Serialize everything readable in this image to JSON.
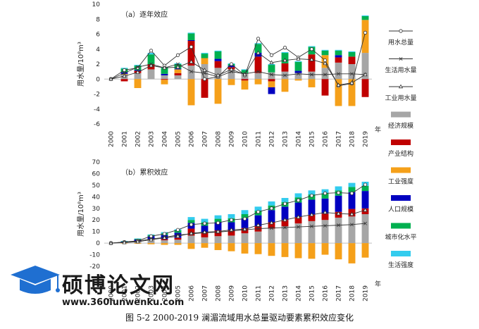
{
  "chart_data": [
    {
      "type": "bar",
      "panel_label": "（a）逐年效应",
      "ylabel": "用水量/10⁸m³",
      "ylim": [
        -6,
        10
      ],
      "yticks": [
        -6,
        -4,
        -2,
        0,
        2,
        4,
        6,
        8,
        10
      ],
      "categories": [
        "2000",
        "2001",
        "2002",
        "2003",
        "2004",
        "2005",
        "2006",
        "2007",
        "2008",
        "2009",
        "2010",
        "2011",
        "2012",
        "2013",
        "2014",
        "2015",
        "2016",
        "2017",
        "2018",
        "2019"
      ],
      "xaxis_unit": "年",
      "stacked": true,
      "series": [
        {
          "name": "经济规模",
          "color": "#a6a6a6",
          "values": [
            0,
            0.6,
            0.8,
            1.3,
            0.5,
            0.5,
            1.8,
            2.0,
            1.5,
            1.3,
            0.8,
            0.8,
            0.9,
            1.0,
            0.8,
            1.0,
            1.5,
            2.2,
            2.0,
            3.5
          ]
        },
        {
          "name": "产业结构",
          "color": "#c00000",
          "values": [
            0,
            -0.3,
            0.3,
            0.7,
            -0.1,
            0.3,
            3.3,
            -2.5,
            0.9,
            0.3,
            -0.2,
            2.2,
            -0.3,
            1.1,
            0.0,
            2.3,
            -2.2,
            0.7,
            1.0,
            -2.4
          ]
        },
        {
          "name": "工业强度",
          "color": "#f5a01a",
          "values": [
            0,
            0.1,
            -1.2,
            0.0,
            -0.6,
            0.5,
            -3.5,
            0.8,
            -3.3,
            -0.8,
            -1.2,
            -0.7,
            -0.8,
            -1.7,
            -0.2,
            -1.1,
            1.7,
            -3.6,
            -3.6,
            4.4
          ]
        },
        {
          "name": "人口规模",
          "color": "#0000c0",
          "values": [
            0,
            0.2,
            0.1,
            0.0,
            0.2,
            0.1,
            0.1,
            0.0,
            0.3,
            0.2,
            0.0,
            0.5,
            -0.9,
            0.0,
            0.3,
            0.0,
            0.0,
            0.3,
            0.0,
            0.0
          ]
        },
        {
          "name": "城市化水平",
          "color": "#00b050",
          "values": [
            0,
            0.5,
            0.6,
            1.3,
            0.8,
            0.6,
            0.9,
            0.6,
            1.0,
            0.2,
            0.4,
            1.2,
            1.0,
            1.4,
            1.2,
            1.0,
            0.6,
            0.6,
            0.6,
            0.5
          ]
        },
        {
          "name": "生活强度",
          "color": "#33ccee",
          "values": [
            0,
            0.1,
            0.1,
            0.2,
            0.1,
            0.1,
            0.1,
            0.1,
            0.1,
            0.1,
            0.1,
            0.1,
            0.1,
            0.1,
            0.1,
            0.1,
            0.1,
            0.1,
            0.1,
            0.1
          ]
        }
      ],
      "lines": [
        {
          "name": "用水总量",
          "marker": "circle",
          "values": [
            0,
            1.2,
            1.5,
            3.8,
            1.8,
            3.2,
            4.3,
            0.0,
            0.3,
            2.0,
            0.5,
            5.4,
            3.2,
            4.2,
            2.9,
            4.0,
            2.5,
            -0.9,
            -0.6,
            6.2
          ]
        },
        {
          "name": "生活用水量",
          "marker": "x",
          "values": [
            0,
            0.8,
            1.6,
            2.0,
            1.5,
            2.0,
            1.0,
            0.8,
            0.3,
            1.0,
            0.7,
            1.0,
            0.6,
            0.5,
            0.7,
            0.6,
            0.6,
            0.7,
            0.7,
            0.6
          ]
        },
        {
          "name": "工业用水量",
          "marker": "triangle",
          "values": [
            0,
            0.4,
            0.9,
            1.8,
            1.5,
            1.6,
            2.3,
            1.2,
            0.5,
            1.3,
            0.6,
            3.5,
            2.2,
            2.5,
            2.7,
            2.6,
            2.1,
            -0.8,
            -0.5,
            0.6
          ]
        }
      ]
    },
    {
      "type": "bar",
      "panel_label": "（b）累积效应",
      "ylabel": "用水量/10⁸m³",
      "ylim": [
        -20,
        70
      ],
      "yticks": [
        -20,
        -10,
        0,
        10,
        20,
        30,
        40,
        50,
        60,
        70
      ],
      "categories": [
        "2000",
        "2001",
        "2002",
        "2003",
        "2004",
        "2005",
        "2006",
        "2007",
        "2008",
        "2009",
        "2010",
        "2011",
        "2012",
        "2013",
        "2014",
        "2015",
        "2016",
        "2017",
        "2018",
        "2019"
      ],
      "xaxis_unit": "年",
      "stacked": true,
      "series": [
        {
          "name": "经济规模",
          "color": "#a6a6a6",
          "values": [
            0,
            0.6,
            1.4,
            3.0,
            2.5,
            3.0,
            6.5,
            5.0,
            6.0,
            6.5,
            8.5,
            10.0,
            12.5,
            14.5,
            17.0,
            19.0,
            20.0,
            22.0,
            23.0,
            25.0
          ]
        },
        {
          "name": "产业结构",
          "color": "#c00000",
          "values": [
            0,
            0.3,
            0.3,
            0.5,
            1.0,
            1.5,
            6.0,
            4.0,
            5.0,
            4.5,
            4.5,
            4.5,
            5.5,
            5.5,
            5.5,
            5.5,
            5.5,
            5.0,
            6.5,
            5.0
          ]
        },
        {
          "name": "工业强度",
          "color": "#f5a01a",
          "values": [
            0,
            -0.2,
            -0.5,
            -1.0,
            -1.5,
            -1.5,
            -5.0,
            -4.0,
            -6.0,
            -7.0,
            -9.0,
            -9.5,
            -11.0,
            -12.0,
            -13.0,
            -13.5,
            -10.0,
            -14.0,
            -17.5,
            -12.5
          ]
        },
        {
          "name": "人口规模",
          "color": "#0000c0",
          "values": [
            0,
            0.5,
            1.5,
            2.5,
            3.5,
            4.5,
            5.0,
            6.0,
            7.0,
            7.0,
            8.5,
            9.5,
            10.5,
            11.5,
            12.5,
            13.0,
            13.0,
            14.0,
            14.5,
            15.0
          ]
        },
        {
          "name": "城市化水平",
          "color": "#00b050",
          "values": [
            0,
            0.3,
            0.5,
            1.0,
            1.5,
            2.0,
            2.5,
            3.0,
            3.0,
            3.5,
            3.5,
            4.0,
            4.0,
            4.0,
            4.5,
            4.5,
            4.5,
            4.5,
            4.5,
            4.5
          ]
        },
        {
          "name": "生活强度",
          "color": "#33ccee",
          "values": [
            0,
            0.2,
            0.3,
            0.5,
            1.0,
            1.0,
            2.5,
            3.0,
            3.0,
            3.5,
            3.5,
            3.5,
            3.5,
            3.5,
            3.5,
            3.5,
            3.5,
            3.5,
            3.5,
            3.5
          ]
        }
      ],
      "lines": [
        {
          "name": "用水总量",
          "marker": "circle",
          "values": [
            0,
            1.0,
            2.0,
            6.0,
            8.0,
            11.5,
            16.0,
            17.0,
            17.5,
            20.0,
            21.0,
            27.0,
            30.0,
            34.0,
            37.0,
            41.0,
            43.0,
            43.5,
            43.0,
            50.5
          ]
        },
        {
          "name": "生活用水量",
          "marker": "x",
          "values": [
            0,
            0.8,
            1.8,
            3.5,
            5.0,
            7.0,
            8.0,
            9.0,
            9.5,
            10.5,
            11.5,
            12.5,
            13.0,
            13.5,
            14.0,
            14.5,
            15.0,
            15.5,
            16.0,
            17.0
          ]
        },
        {
          "name": "工业用水量",
          "marker": "triangle",
          "values": [
            0,
            0.5,
            1.2,
            3.0,
            4.5,
            6.0,
            8.5,
            9.5,
            10.0,
            11.5,
            12.0,
            15.5,
            17.5,
            20.0,
            22.5,
            24.5,
            26.5,
            25.5,
            25.0,
            28.5
          ]
        }
      ]
    }
  ],
  "legend": {
    "items": [
      {
        "name": "用水总量",
        "kind": "line",
        "marker": "circle",
        "color": "#333333"
      },
      {
        "name": "生活用水量",
        "kind": "line",
        "marker": "x",
        "color": "#333333"
      },
      {
        "name": "工业用水量",
        "kind": "line",
        "marker": "triangle",
        "color": "#333333"
      },
      {
        "name": "经济规模",
        "kind": "patch",
        "color": "#a6a6a6"
      },
      {
        "name": "产业结构",
        "kind": "patch",
        "color": "#c00000"
      },
      {
        "name": "工业强度",
        "kind": "patch",
        "color": "#f5a01a"
      },
      {
        "name": "人口规模",
        "kind": "patch",
        "color": "#0000c0"
      },
      {
        "name": "城市化水平",
        "kind": "patch",
        "color": "#00b050"
      },
      {
        "name": "生活强度",
        "kind": "patch",
        "color": "#33ccee"
      }
    ]
  },
  "caption": "图 5-2 2000-2019 澜湄流域用水总量驱动要素累积效应变化",
  "watermark": {
    "title": "硕博论文网",
    "url": "www.360lunwenku.com",
    "icon": "graduation-cap-icon",
    "color": "#1f6fd1"
  }
}
